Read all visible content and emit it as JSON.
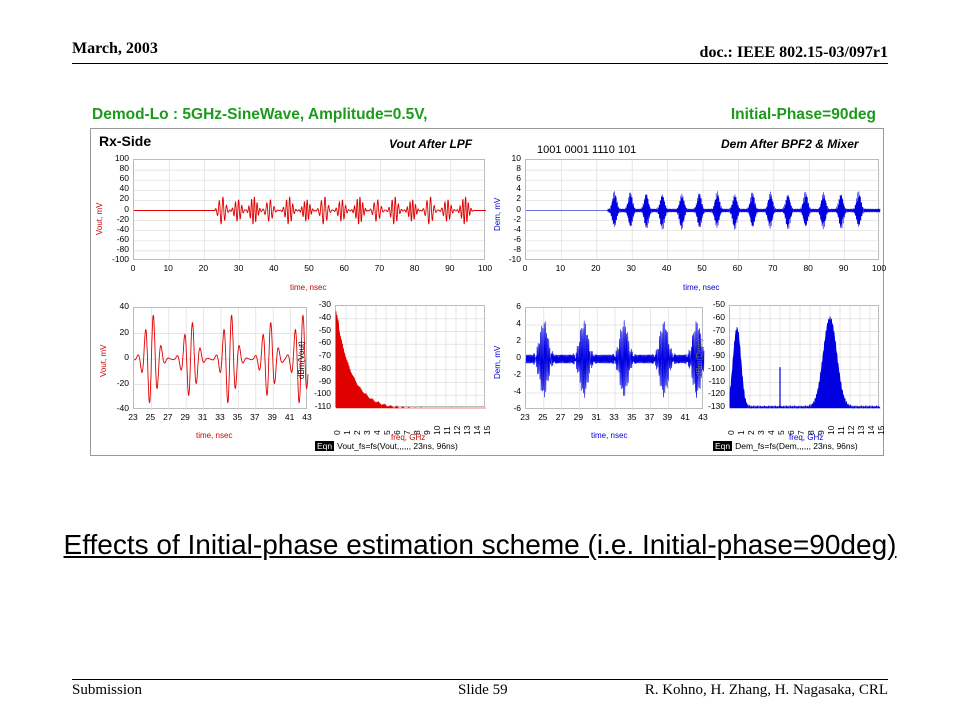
{
  "header": {
    "date": "March, 2003",
    "doc": "doc.: IEEE 802.15-03/097r1"
  },
  "footer": {
    "left": "Submission",
    "slide": "Slide 59",
    "authors": "R. Kohno, H. Zhang, H. Nagasaka, CRL"
  },
  "figure": {
    "title_left": "Demod-Lo : 5GHz-SineWave, Amplitude=0.5V,",
    "title_right": "Initial-Phase=90deg",
    "panel_label": "Rx-Side",
    "plots": {
      "vout_lpf": {
        "label": "Vout After LPF",
        "ylabel": "Vout, mV",
        "xlabel": "time, nsec",
        "yticks": [
          "100",
          "80",
          "60",
          "40",
          "20",
          "0",
          "-20",
          "-40",
          "-60",
          "-80",
          "-100"
        ],
        "xticks": [
          "0",
          "10",
          "20",
          "30",
          "40",
          "50",
          "60",
          "70",
          "80",
          "90",
          "100"
        ]
      },
      "dem_bpf": {
        "label": "Dem After BPF2 & Mixer",
        "bits": "1001 0001 1110 101",
        "ylabel": "Dem, mV",
        "xlabel": "time, nsec",
        "yticks": [
          "10",
          "8",
          "6",
          "4",
          "2",
          "0",
          "-2",
          "-4",
          "-6",
          "-8",
          "-10"
        ],
        "xticks": [
          "0",
          "10",
          "20",
          "30",
          "40",
          "50",
          "60",
          "70",
          "80",
          "90",
          "100"
        ]
      },
      "vout_zoom": {
        "ylabel": "Vout, mV",
        "xlabel": "time, nsec",
        "yticks": [
          "40",
          "20",
          "0",
          "-20",
          "-40"
        ],
        "xticks": [
          "23",
          "25",
          "27",
          "29",
          "31",
          "33",
          "35",
          "37",
          "39",
          "41",
          "43"
        ]
      },
      "vout_spec": {
        "ylabel": "dBm(Vout)",
        "xlabel": "freq, GHz",
        "yticks": [
          "-30",
          "-40",
          "-50",
          "-60",
          "-70",
          "-80",
          "-90",
          "-100",
          "-110"
        ],
        "xticks": [
          "0",
          "1",
          "2",
          "3",
          "4",
          "5",
          "6",
          "7",
          "8",
          "9",
          "10",
          "11",
          "12",
          "13",
          "14",
          "15"
        ],
        "eqn": "Vout_fs=fs(Vout,,,,,, 23ns, 96ns)"
      },
      "dem_zoom": {
        "ylabel": "Dem, mV",
        "xlabel": "time, nsec",
        "yticks": [
          "6",
          "4",
          "2",
          "0",
          "-2",
          "-4",
          "-6"
        ],
        "xticks": [
          "23",
          "25",
          "27",
          "29",
          "31",
          "33",
          "35",
          "37",
          "39",
          "41",
          "43"
        ]
      },
      "dem_spec": {
        "ylabel": "dBm(Dem)",
        "xlabel": "freq, GHz",
        "yticks": [
          "-50",
          "-60",
          "-70",
          "-80",
          "-90",
          "-100",
          "-110",
          "-120",
          "-130"
        ],
        "xticks": [
          "0",
          "1",
          "2",
          "3",
          "4",
          "5",
          "6",
          "7",
          "8",
          "9",
          "10",
          "11",
          "12",
          "13",
          "14",
          "15"
        ],
        "eqn": "Dem_fs=fs(Dem,,,,,, 23ns, 96ns)"
      }
    },
    "eqn_tag": "Eqn",
    "colors": {
      "red": "#e00000",
      "blue": "#0000e0",
      "green_title": "#1c9a1c"
    }
  },
  "caption": "Effects of Initial-phase estimation scheme (i.e. Initial-phase=90deg)"
}
